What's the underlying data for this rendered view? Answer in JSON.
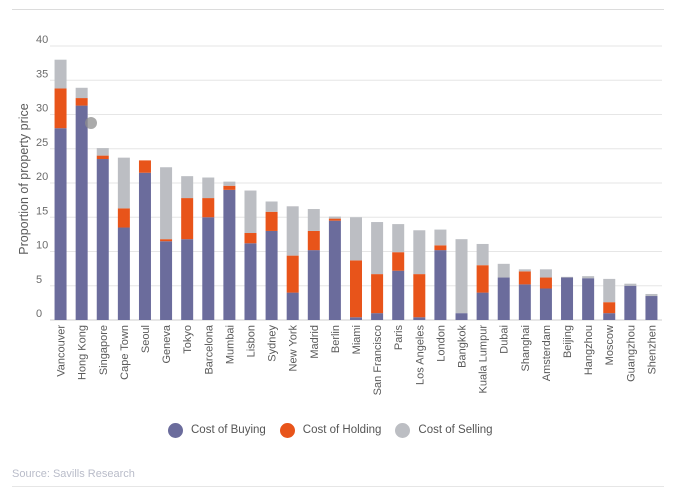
{
  "chart_data": {
    "type": "bar",
    "stacked": true,
    "ylabel": "Proportion of property price",
    "ylim": [
      0,
      40
    ],
    "yticks": [
      0,
      5,
      10,
      15,
      20,
      25,
      30,
      35,
      40
    ],
    "grid": true,
    "legend_position": "bottom",
    "categories": [
      "Vancouver",
      "Hong Kong",
      "Singapore",
      "Cape Town",
      "Seoul",
      "Geneva",
      "Tokyo",
      "Barcelona",
      "Mumbai",
      "Lisbon",
      "Sydney",
      "New York",
      "Madrid",
      "Berlin",
      "Miami",
      "San Francisco",
      "Paris",
      "Los Angeles",
      "London",
      "Bangkok",
      "Kuala Lumpur",
      "Dubai",
      "Shanghai",
      "Amsterdam",
      "Beijing",
      "Hangzhou",
      "Moscow",
      "Guangzhou",
      "Shenzhen"
    ],
    "series": [
      {
        "name": "Cost of Buying",
        "color": "#6b6c9c",
        "values": [
          28,
          31.3,
          23.5,
          13.5,
          21.5,
          11.5,
          11.8,
          15,
          19,
          11.2,
          13,
          4,
          10.2,
          14.5,
          0.4,
          1,
          7.2,
          0.4,
          10.2,
          1,
          4,
          6.2,
          5.2,
          4.6,
          6.2,
          6.1,
          1,
          5,
          3.5
        ]
      },
      {
        "name": "Cost of Holding",
        "color": "#e8541a",
        "values": [
          5.8,
          1.1,
          0.5,
          2.8,
          1.8,
          0.3,
          6,
          2.8,
          0.6,
          1.5,
          2.8,
          5.4,
          2.8,
          0.3,
          8.3,
          5.7,
          2.7,
          6.3,
          0.7,
          0,
          4,
          0,
          1.9,
          1.6,
          0,
          0,
          1.6,
          0,
          0
        ]
      },
      {
        "name": "Cost of Selling",
        "color": "#bcbec3",
        "values": [
          4.2,
          1.5,
          1.1,
          7.4,
          0,
          10.5,
          3.2,
          3,
          0.6,
          6.2,
          1.5,
          7.2,
          3.2,
          0.3,
          6.3,
          7.6,
          4.1,
          6.4,
          2.3,
          10.8,
          3.1,
          2,
          0.3,
          1.2,
          0.1,
          0.3,
          3.4,
          0.3,
          0.3
        ]
      }
    ]
  },
  "source": "Source: Savills Research"
}
